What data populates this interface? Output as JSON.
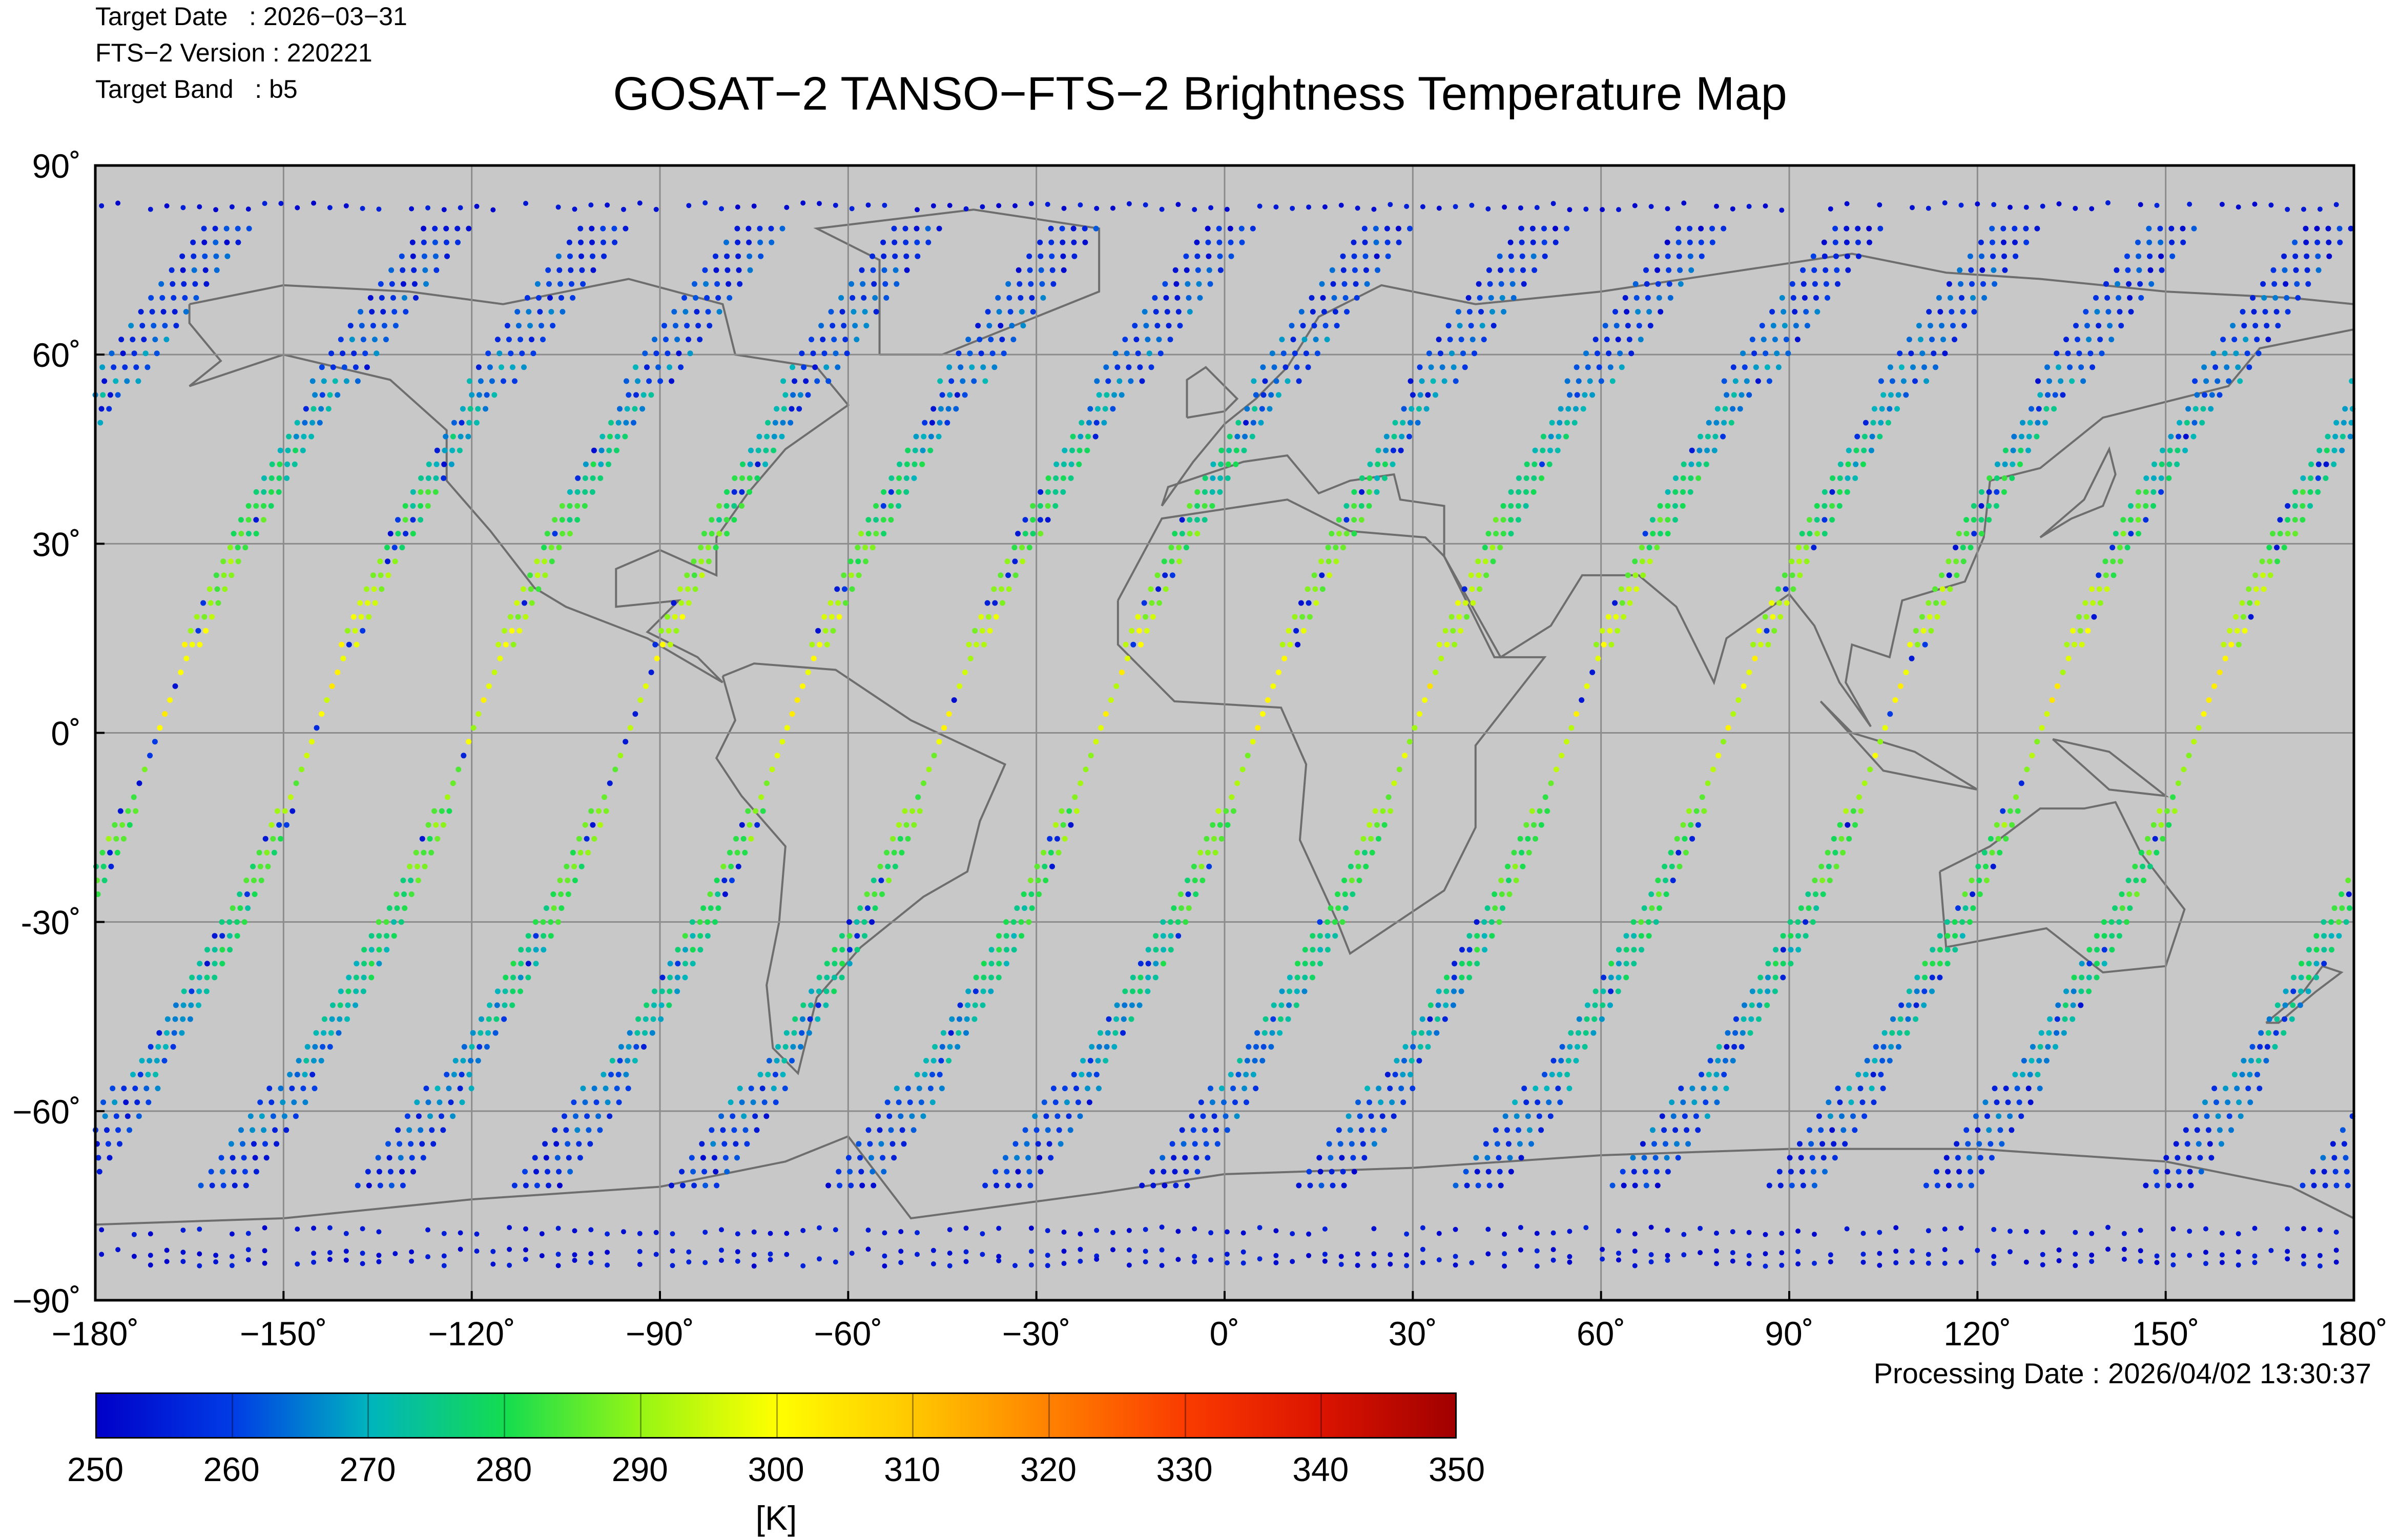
{
  "header": {
    "target_date": "Target Date   : 2026−03−31",
    "fts_version": "FTS−2 Version : 220221",
    "target_band": "Target Band   : b5"
  },
  "title": "GOSAT−2 TANSO−FTS−2 Brightness Temperature Map",
  "processing_date": "Processing Date : 2026/04/02 13:30:37",
  "map": {
    "lon_range": [
      -180,
      180
    ],
    "lat_range": [
      -90,
      90
    ],
    "lon_ticks": [
      "−180˚",
      "−150˚",
      "−120˚",
      "−90˚",
      "−60˚",
      "−30˚",
      "0˚",
      "30˚",
      "60˚",
      "90˚",
      "120˚",
      "150˚",
      "180˚"
    ],
    "lat_ticks": [
      "90˚",
      "60˚",
      "30˚",
      "0˚",
      "-30˚",
      "−60˚",
      "−90˚"
    ],
    "grid": true,
    "background_color": "#c8c8c8",
    "coastline_color": "#6e6e6e"
  },
  "colorbar": {
    "min": 250,
    "max": 350,
    "labels": [
      "250",
      "260",
      "270",
      "280",
      "290",
      "300",
      "310",
      "320",
      "330",
      "340",
      "350"
    ],
    "unit": "[K]",
    "colormap": "jet"
  },
  "chart_data": {
    "type": "scatter",
    "title": "GOSAT−2 TANSO−FTS−2 Brightness Temperature Map",
    "xlabel": "",
    "ylabel": "",
    "xlim": [
      -180,
      180
    ],
    "ylim": [
      -90,
      90
    ],
    "grid": true,
    "value_unit": "K",
    "value_range": [
      250,
      350
    ],
    "series": [
      {
        "descending_tracks_lon_at_equator": [
          -170,
          -145,
          -120,
          -95,
          -70,
          -45,
          -20,
          5,
          30,
          55,
          80,
          105,
          130,
          155
        ]
      },
      {
        "track_profile_lat": [
          82,
          60,
          40,
          20,
          5,
          -10,
          -30,
          -45,
          -60,
          -72
        ],
        "track_profile_temperature_K": [
          256,
          262,
          276,
          292,
          300,
          288,
          278,
          270,
          262,
          256
        ]
      }
    ]
  }
}
